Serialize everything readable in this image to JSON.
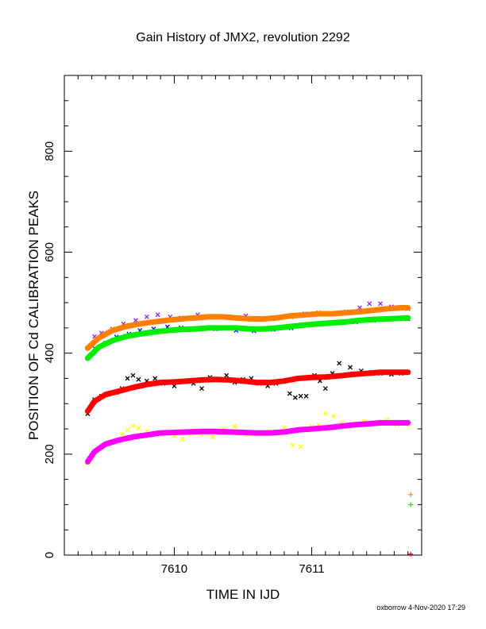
{
  "chart_data": {
    "type": "scatter",
    "title": "Gain History of JMX2, revolution 2292",
    "xlabel": "TIME IN IJD",
    "ylabel": "POSITION OF Cd CALIBRATION PEAKS",
    "xlim": [
      7609.2,
      7611.8
    ],
    "ylim": [
      0,
      950
    ],
    "x_ticks": [
      7610,
      7611
    ],
    "y_ticks": [
      0,
      200,
      400,
      600,
      800
    ],
    "grid": false,
    "footer": "oxborrow  4-Nov-2020 17:29",
    "series": [
      {
        "color": "#a020f0",
        "marker": "x",
        "role": "points",
        "x": [
          7609.37,
          7609.42,
          7609.47,
          7609.55,
          7609.63,
          7609.72,
          7609.8,
          7609.88,
          7609.97,
          7610.05,
          7610.17,
          7610.28,
          7610.4,
          7610.52,
          7610.62,
          7610.75,
          7610.85,
          7610.95,
          7611.05,
          7611.15,
          7611.25,
          7611.35,
          7611.42,
          7611.5,
          7611.58,
          7611.65,
          7611.7
        ],
        "y": [
          410,
          433,
          440,
          448,
          458,
          465,
          472,
          476,
          472,
          470,
          476,
          472,
          470,
          474,
          468,
          470,
          472,
          478,
          480,
          478,
          482,
          490,
          498,
          498,
          492,
          490,
          488
        ]
      },
      {
        "color": "#0000ff",
        "marker": "x",
        "role": "points",
        "x": [
          7609.37,
          7609.42,
          7609.5,
          7609.58,
          7609.67,
          7609.75,
          7609.85,
          7609.95,
          7610.05,
          7610.15,
          7610.3,
          7610.45,
          7610.58,
          7610.72,
          7610.85,
          7610.97,
          7611.08,
          7611.2,
          7611.32,
          7611.45,
          7611.55,
          7611.65,
          7611.7
        ],
        "y": [
          390,
          410,
          420,
          432,
          438,
          445,
          448,
          452,
          450,
          448,
          448,
          445,
          444,
          447,
          450,
          455,
          458,
          460,
          462,
          465,
          468,
          470,
          468
        ]
      },
      {
        "color": "#ff7f00",
        "marker": "line",
        "role": "fit",
        "x": [
          7609.37,
          7609.45,
          7609.55,
          7609.65,
          7609.75,
          7609.85,
          7609.95,
          7610.05,
          7610.15,
          7610.25,
          7610.35,
          7610.45,
          7610.55,
          7610.65,
          7610.75,
          7610.85,
          7610.95,
          7611.05,
          7611.15,
          7611.25,
          7611.35,
          7611.45,
          7611.55,
          7611.65,
          7611.7
        ],
        "y": [
          410,
          430,
          445,
          453,
          458,
          462,
          465,
          468,
          470,
          472,
          472,
          470,
          468,
          468,
          470,
          474,
          476,
          478,
          478,
          480,
          482,
          485,
          488,
          490,
          490
        ]
      },
      {
        "color": "#00ee00",
        "marker": "line",
        "role": "fit",
        "x": [
          7609.37,
          7609.45,
          7609.55,
          7609.65,
          7609.75,
          7609.85,
          7609.95,
          7610.05,
          7610.15,
          7610.25,
          7610.35,
          7610.45,
          7610.55,
          7610.65,
          7610.75,
          7610.85,
          7610.95,
          7611.05,
          7611.15,
          7611.25,
          7611.35,
          7611.45,
          7611.55,
          7611.65,
          7611.7
        ],
        "y": [
          390,
          412,
          425,
          433,
          438,
          442,
          445,
          447,
          448,
          450,
          450,
          450,
          448,
          448,
          450,
          453,
          456,
          458,
          460,
          462,
          465,
          467,
          468,
          469,
          470
        ]
      },
      {
        "color": "#000000",
        "marker": "x",
        "role": "points",
        "x": [
          7609.37,
          7609.42,
          7609.47,
          7609.52,
          7609.58,
          7609.62,
          7609.66,
          7609.7,
          7609.74,
          7609.8,
          7609.86,
          7609.92,
          7610.0,
          7610.06,
          7610.14,
          7610.2,
          7610.26,
          7610.32,
          7610.38,
          7610.44,
          7610.5,
          7610.56,
          7610.62,
          7610.68,
          7610.74,
          7610.8,
          7610.84,
          7610.88,
          7610.92,
          7610.96,
          7611.02,
          7611.06,
          7611.1,
          7611.15,
          7611.2,
          7611.28,
          7611.36,
          7611.44,
          7611.5,
          7611.58,
          7611.65,
          7611.7
        ],
        "y": [
          280,
          308,
          315,
          320,
          322,
          330,
          350,
          356,
          348,
          345,
          350,
          340,
          335,
          345,
          340,
          330,
          352,
          348,
          356,
          342,
          348,
          350,
          340,
          335,
          340,
          345,
          320,
          312,
          315,
          315,
          356,
          345,
          330,
          360,
          380,
          372,
          365,
          362,
          360,
          358,
          360,
          362
        ]
      },
      {
        "color": "#ff0000",
        "marker": "line",
        "role": "fit",
        "x": [
          7609.37,
          7609.42,
          7609.5,
          7609.6,
          7609.7,
          7609.8,
          7609.9,
          7610.0,
          7610.1,
          7610.2,
          7610.3,
          7610.4,
          7610.5,
          7610.6,
          7610.7,
          7610.8,
          7610.9,
          7611.0,
          7611.1,
          7611.2,
          7611.3,
          7611.4,
          7611.5,
          7611.6,
          7611.7
        ],
        "y": [
          285,
          305,
          318,
          325,
          332,
          338,
          342,
          343,
          345,
          347,
          348,
          347,
          345,
          342,
          342,
          345,
          350,
          352,
          353,
          355,
          358,
          360,
          362,
          362,
          362
        ]
      },
      {
        "color": "#ffff00",
        "marker": "x",
        "role": "points",
        "x": [
          7609.37,
          7609.42,
          7609.47,
          7609.52,
          7609.58,
          7609.62,
          7609.66,
          7609.7,
          7609.74,
          7609.8,
          7609.9,
          7610.0,
          7610.06,
          7610.12,
          7610.2,
          7610.28,
          7610.36,
          7610.44,
          7610.52,
          7610.6,
          7610.68,
          7610.74,
          7610.8,
          7610.86,
          7610.92,
          7611.0,
          7611.05,
          7611.1,
          7611.16,
          7611.22,
          7611.3,
          7611.38,
          7611.46,
          7611.55,
          7611.62,
          7611.7
        ],
        "y": [
          182,
          205,
          215,
          220,
          228,
          240,
          248,
          256,
          252,
          245,
          240,
          236,
          230,
          240,
          238,
          234,
          250,
          255,
          238,
          242,
          245,
          240,
          252,
          218,
          215,
          255,
          258,
          280,
          275,
          262,
          260,
          265,
          262,
          268,
          258,
          258
        ]
      },
      {
        "color": "#ff00ff",
        "marker": "line",
        "role": "fit",
        "x": [
          7609.37,
          7609.42,
          7609.5,
          7609.6,
          7609.7,
          7609.8,
          7609.9,
          7610.0,
          7610.1,
          7610.2,
          7610.3,
          7610.4,
          7610.5,
          7610.6,
          7610.7,
          7610.8,
          7610.9,
          7611.0,
          7611.1,
          7611.2,
          7611.3,
          7611.4,
          7611.5,
          7611.6,
          7611.7
        ],
        "y": [
          185,
          205,
          220,
          228,
          234,
          238,
          242,
          243,
          244,
          245,
          245,
          244,
          243,
          242,
          242,
          244,
          248,
          250,
          252,
          255,
          258,
          260,
          262,
          262,
          262
        ]
      },
      {
        "color": "#ff7f00",
        "marker": "plus",
        "role": "outlier",
        "x": [
          7611.72
        ],
        "y": [
          120
        ]
      },
      {
        "color": "#00ee00",
        "marker": "plus",
        "role": "outlier",
        "x": [
          7611.72
        ],
        "y": [
          100
        ]
      },
      {
        "color": "#ff0000",
        "marker": "plus",
        "role": "outlier",
        "x": [
          7611.72
        ],
        "y": [
          2
        ]
      }
    ]
  }
}
